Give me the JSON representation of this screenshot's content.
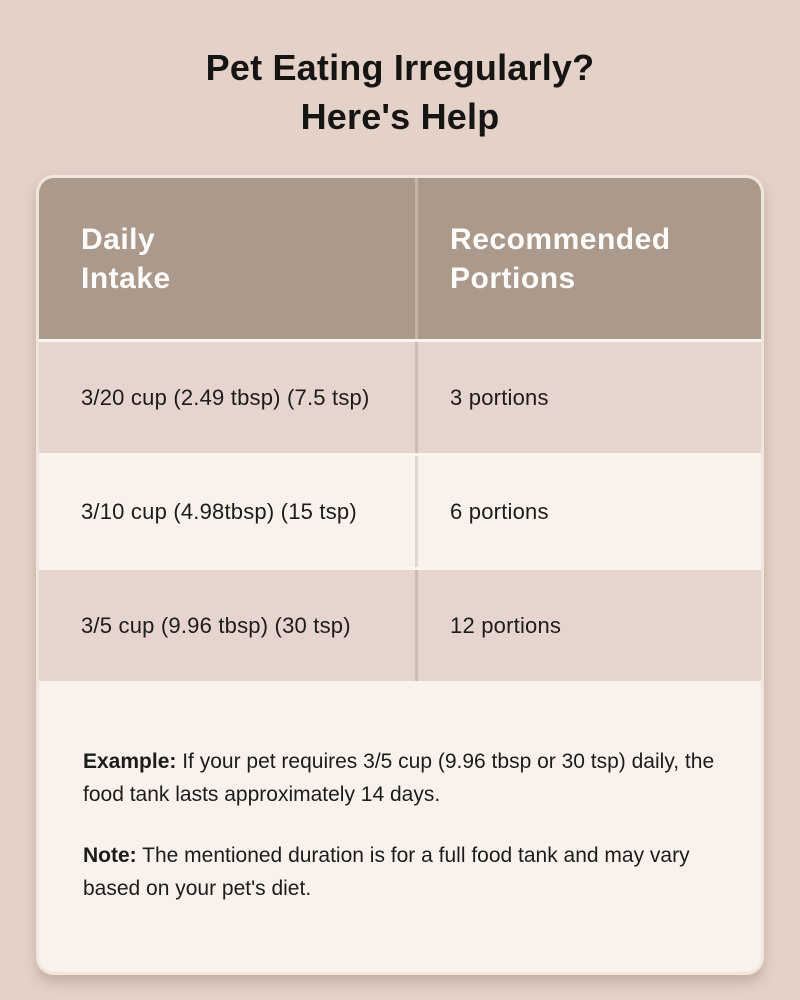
{
  "page": {
    "title_line1": "Pet Eating Irregularly?",
    "title_line2": "Here's Help"
  },
  "table": {
    "header": {
      "daily_intake": "Daily\nIntake",
      "recommended_portions": "Recommended\nPortions"
    },
    "rows": [
      {
        "intake": "3/20 cup (2.49 tbsp) (7.5 tsp)",
        "portions": "3 portions"
      },
      {
        "intake": "3/10 cup (4.98tbsp) (15 tsp)",
        "portions": "6 portions"
      },
      {
        "intake": "3/5 cup (9.96 tbsp) (30 tsp)",
        "portions": "12 portions"
      }
    ]
  },
  "notes": {
    "example_label": "Example:",
    "example_text": "If your pet requires 3/5 cup (9.96 tbsp or 30 tsp) daily, the food tank lasts approximately 14 days.",
    "note_label": "Note:",
    "note_text": "The mentioned duration is for a full food tank and may vary based on your pet's diet."
  },
  "palette": {
    "page_background": "#e4d1c8",
    "header_background": "#ab998c",
    "row_pink": "#e6d4cf",
    "row_cream": "#f9f2ec",
    "header_text": "#fdfcfb",
    "body_text": "#1d1c1a",
    "card_border": "#f0e6dd"
  }
}
